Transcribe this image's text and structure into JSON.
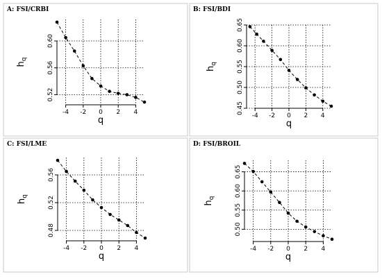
{
  "chart_data": [
    {
      "type": "line",
      "title": "A: FSI/CRBI",
      "xlabel": "q",
      "ylabel": "h",
      "ylabel_sub": "q",
      "xlim": [
        -5,
        5
      ],
      "ylim": [
        0.505,
        0.632
      ],
      "xticks": [
        "-4",
        "-2",
        "0",
        "2",
        "4"
      ],
      "xtick_values": [
        -4,
        -2,
        0,
        2,
        4
      ],
      "yticks": [
        "0.52",
        "0.56",
        "0.60"
      ],
      "ytick_values": [
        0.52,
        0.56,
        0.6
      ],
      "grid": true,
      "x": [
        -5,
        -4,
        -3,
        -2,
        -1,
        0,
        1,
        2,
        3,
        4,
        5
      ],
      "y": [
        0.628,
        0.605,
        0.585,
        0.563,
        0.544,
        0.533,
        0.525,
        0.522,
        0.52,
        0.516,
        0.509
      ]
    },
    {
      "type": "line",
      "title": "B: FSI/BDI",
      "xlabel": "q",
      "ylabel": "h",
      "ylabel_sub": "q",
      "xlim": [
        -5,
        5
      ],
      "ylim": [
        0.45,
        0.65
      ],
      "xticks": [
        "-4",
        "-2",
        "0",
        "2",
        "4"
      ],
      "xtick_values": [
        -4,
        -2,
        0,
        2,
        4
      ],
      "yticks": [
        "0.45",
        "0.50",
        "0.55",
        "0.60",
        "0.65"
      ],
      "ytick_values": [
        0.45,
        0.5,
        0.55,
        0.6,
        0.65
      ],
      "grid": true,
      "x": [
        -4.6,
        -3.8,
        -3,
        -2,
        -1,
        0,
        1,
        2,
        3,
        4,
        5
      ],
      "y": [
        0.646,
        0.628,
        0.611,
        0.589,
        0.567,
        0.541,
        0.519,
        0.499,
        0.482,
        0.467,
        0.455
      ]
    },
    {
      "type": "line",
      "title": "C: FSI/LME",
      "xlabel": "q",
      "ylabel": "h",
      "ylabel_sub": "q",
      "xlim": [
        -5,
        5
      ],
      "ylim": [
        0.465,
        0.585
      ],
      "xticks": [
        "-4",
        "-2",
        "0",
        "2",
        "4"
      ],
      "xtick_values": [
        -4,
        -2,
        0,
        2,
        4
      ],
      "yticks": [
        "0.48",
        "0.52",
        "0.56"
      ],
      "ytick_values": [
        0.48,
        0.52,
        0.56
      ],
      "grid": true,
      "x": [
        -5,
        -4,
        -3,
        -2,
        -1,
        0,
        1,
        2,
        3,
        4,
        5
      ],
      "y": [
        0.581,
        0.565,
        0.551,
        0.538,
        0.524,
        0.513,
        0.503,
        0.495,
        0.487,
        0.477,
        0.469
      ]
    },
    {
      "type": "line",
      "title": "D: FSI/BROIL",
      "xlabel": "q",
      "ylabel": "h",
      "ylabel_sub": "q",
      "xlim": [
        -5,
        5
      ],
      "ylim": [
        0.468,
        0.68
      ],
      "xticks": [
        "-4",
        "-2",
        "0",
        "2",
        "4"
      ],
      "xtick_values": [
        -4,
        -2,
        0,
        2,
        4
      ],
      "yticks": [
        "0.50",
        "0.55",
        "0.60",
        "0.65"
      ],
      "ytick_values": [
        0.5,
        0.55,
        0.6,
        0.65
      ],
      "grid": true,
      "x": [
        -5,
        -4,
        -3,
        -2,
        -1,
        0,
        1,
        2,
        3,
        4,
        5
      ],
      "y": [
        0.672,
        0.651,
        0.624,
        0.597,
        0.57,
        0.542,
        0.521,
        0.506,
        0.494,
        0.483,
        0.474
      ]
    }
  ]
}
